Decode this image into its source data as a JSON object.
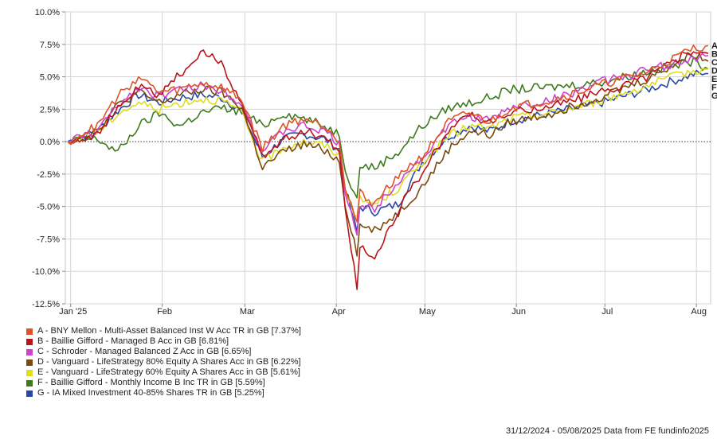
{
  "chart_data": {
    "type": "line",
    "ylim": [
      -12.5,
      10
    ],
    "y_ticks": [
      "10.0%",
      "7.5%",
      "5.0%",
      "2.5%",
      "0.0%",
      "-2.5%",
      "-5.0%",
      "-7.5%",
      "-10.0%",
      "-12.5%"
    ],
    "y_tick_values": [
      10,
      7.5,
      5,
      2.5,
      0,
      -2.5,
      -5,
      -7.5,
      -10,
      -12.5
    ],
    "x_ticks": [
      "Jan '25",
      "Feb",
      "Mar",
      "Apr",
      "May",
      "Jun",
      "Jul",
      "Aug"
    ],
    "x_tick_values": [
      "2025-01-01",
      "2025-02-01",
      "2025-03-01",
      "2025-04-01",
      "2025-05-01",
      "2025-06-01",
      "2025-07-01",
      "2025-08-01"
    ],
    "x_range": [
      "2024-12-31",
      "2025-08-05"
    ],
    "grid": true,
    "zero_line": "dotted",
    "series": [
      {
        "letter": "A",
        "name": "A - BNY Mellon - Multi-Asset Balanced Inst W Acc TR in GB [7.37%]",
        "color": "#e0522a",
        "x": [
          "2024-12-31",
          "2025-01-10",
          "2025-01-17",
          "2025-01-24",
          "2025-01-31",
          "2025-02-07",
          "2025-02-14",
          "2025-02-21",
          "2025-02-28",
          "2025-03-07",
          "2025-03-14",
          "2025-03-21",
          "2025-03-28",
          "2025-04-02",
          "2025-04-04",
          "2025-04-08",
          "2025-04-09",
          "2025-04-14",
          "2025-04-22",
          "2025-04-30",
          "2025-05-09",
          "2025-05-16",
          "2025-05-23",
          "2025-05-30",
          "2025-06-13",
          "2025-06-30",
          "2025-07-15",
          "2025-07-31",
          "2025-08-05"
        ],
        "y": [
          0,
          1.2,
          3.5,
          5,
          3.8,
          4,
          4.5,
          4.2,
          3.2,
          -0.5,
          1.2,
          1.8,
          1.2,
          0.2,
          -3.5,
          -6.2,
          -4,
          -4.8,
          -2.5,
          -1.2,
          1.5,
          2.2,
          1.5,
          2.6,
          3.2,
          4.4,
          5.3,
          7.2,
          7.4
        ]
      },
      {
        "letter": "B",
        "name": "B - Baillie Gifford - Managed B Acc in GB [6.81%]",
        "color": "#b8151c",
        "x": [
          "2024-12-31",
          "2025-01-10",
          "2025-01-17",
          "2025-01-24",
          "2025-01-31",
          "2025-02-07",
          "2025-02-14",
          "2025-02-21",
          "2025-02-28",
          "2025-03-07",
          "2025-03-14",
          "2025-03-21",
          "2025-03-28",
          "2025-04-02",
          "2025-04-04",
          "2025-04-08",
          "2025-04-09",
          "2025-04-14",
          "2025-04-22",
          "2025-04-30",
          "2025-05-09",
          "2025-05-16",
          "2025-05-23",
          "2025-05-30",
          "2025-06-13",
          "2025-06-30",
          "2025-07-15",
          "2025-07-31",
          "2025-08-05"
        ],
        "y": [
          0,
          0.6,
          2.5,
          4.2,
          3.6,
          5.2,
          6.8,
          6.2,
          2.8,
          -1.2,
          0.2,
          0.8,
          0.4,
          -0.8,
          -5,
          -11.3,
          -8,
          -9,
          -5.2,
          -2.4,
          0.8,
          2.2,
          1.4,
          2.2,
          2.8,
          3.8,
          5,
          7.1,
          6.8
        ]
      },
      {
        "letter": "C",
        "name": "C - Schroder - Managed Balanced Z Acc in GB [6.65%]",
        "color": "#cc44cc",
        "x": [
          "2024-12-31",
          "2025-01-10",
          "2025-01-17",
          "2025-01-24",
          "2025-01-31",
          "2025-02-07",
          "2025-02-14",
          "2025-02-21",
          "2025-02-28",
          "2025-03-07",
          "2025-03-14",
          "2025-03-21",
          "2025-03-28",
          "2025-04-02",
          "2025-04-04",
          "2025-04-08",
          "2025-04-09",
          "2025-04-14",
          "2025-04-22",
          "2025-04-30",
          "2025-05-09",
          "2025-05-16",
          "2025-05-23",
          "2025-05-30",
          "2025-06-13",
          "2025-06-30",
          "2025-07-15",
          "2025-07-31",
          "2025-08-05"
        ],
        "y": [
          0,
          0.8,
          2.8,
          4.2,
          3.5,
          4,
          4.3,
          4,
          3,
          -0.8,
          0.8,
          1.2,
          0.8,
          -0.2,
          -3.8,
          -7,
          -5,
          -5.2,
          -3,
          -1.3,
          1.2,
          2,
          1.6,
          2.6,
          3.2,
          4.6,
          5.5,
          6.4,
          6.65
        ]
      },
      {
        "letter": "D",
        "name": "D - Vanguard - LifeStrategy 80% Equity A Shares Acc in GB [6.22%]",
        "color": "#7a4a10",
        "x": [
          "2024-12-31",
          "2025-01-10",
          "2025-01-17",
          "2025-01-24",
          "2025-01-31",
          "2025-02-07",
          "2025-02-14",
          "2025-02-21",
          "2025-02-28",
          "2025-03-07",
          "2025-03-14",
          "2025-03-21",
          "2025-03-28",
          "2025-04-02",
          "2025-04-04",
          "2025-04-08",
          "2025-04-09",
          "2025-04-14",
          "2025-04-22",
          "2025-04-30",
          "2025-05-09",
          "2025-05-16",
          "2025-05-23",
          "2025-05-30",
          "2025-06-13",
          "2025-06-30",
          "2025-07-15",
          "2025-07-31",
          "2025-08-05"
        ],
        "y": [
          0,
          0.9,
          2.8,
          3.8,
          3,
          3.6,
          4,
          3.8,
          2.6,
          -2,
          -0.8,
          -0.2,
          -0.6,
          -1.5,
          -4.8,
          -8.5,
          -6.5,
          -6.8,
          -5.5,
          -3.5,
          -0.6,
          0.8,
          0.5,
          1.5,
          2.2,
          3.5,
          4.8,
          6.8,
          6.2
        ]
      },
      {
        "letter": "E",
        "name": "E - Vanguard - LifeStrategy 60% Equity A Shares Acc in GB [5.61%]",
        "color": "#dddd22",
        "x": [
          "2024-12-31",
          "2025-01-10",
          "2025-01-17",
          "2025-01-24",
          "2025-01-31",
          "2025-02-07",
          "2025-02-14",
          "2025-02-21",
          "2025-02-28",
          "2025-03-07",
          "2025-03-14",
          "2025-03-21",
          "2025-03-28",
          "2025-04-02",
          "2025-04-04",
          "2025-04-08",
          "2025-04-09",
          "2025-04-14",
          "2025-04-22",
          "2025-04-30",
          "2025-05-09",
          "2025-05-16",
          "2025-05-23",
          "2025-05-30",
          "2025-06-13",
          "2025-06-30",
          "2025-07-15",
          "2025-07-31",
          "2025-08-05"
        ],
        "y": [
          0,
          0.7,
          2.2,
          3,
          2.5,
          3,
          3.3,
          3.2,
          2.2,
          -1.6,
          -0.4,
          0,
          -0.3,
          -1,
          -3.6,
          -6,
          -4.5,
          -4.8,
          -3.6,
          -1.6,
          0.4,
          1.2,
          1,
          1.8,
          2.2,
          3.2,
          4.3,
          5.5,
          5.6
        ]
      },
      {
        "letter": "F",
        "name": "F - Baillie Gifford - Monthly Income B Inc TR in GB [5.59%]",
        "color": "#3d7a1c",
        "x": [
          "2024-12-31",
          "2025-01-10",
          "2025-01-17",
          "2025-01-24",
          "2025-01-31",
          "2025-02-07",
          "2025-02-14",
          "2025-02-21",
          "2025-02-28",
          "2025-03-07",
          "2025-03-14",
          "2025-03-21",
          "2025-03-28",
          "2025-04-02",
          "2025-04-04",
          "2025-04-08",
          "2025-04-09",
          "2025-04-14",
          "2025-04-22",
          "2025-04-30",
          "2025-05-09",
          "2025-05-16",
          "2025-05-23",
          "2025-05-30",
          "2025-06-13",
          "2025-06-30",
          "2025-07-15",
          "2025-07-31",
          "2025-08-05"
        ],
        "y": [
          0,
          0.2,
          -0.8,
          1.2,
          2.2,
          1.2,
          2.2,
          2.6,
          2.3,
          1.2,
          2.2,
          1.8,
          1.2,
          0.6,
          -2,
          -4.5,
          -1.8,
          -2,
          -0.8,
          1.2,
          2.6,
          3,
          3.4,
          4,
          4.2,
          4.6,
          5.4,
          6.2,
          5.6
        ]
      },
      {
        "letter": "G",
        "name": "G - IA Mixed Investment 40-85% Shares TR in GB [5.25%]",
        "color": "#2848a8",
        "x": [
          "2024-12-31",
          "2025-01-10",
          "2025-01-17",
          "2025-01-24",
          "2025-01-31",
          "2025-02-07",
          "2025-02-14",
          "2025-02-21",
          "2025-02-28",
          "2025-03-07",
          "2025-03-14",
          "2025-03-21",
          "2025-03-28",
          "2025-04-02",
          "2025-04-04",
          "2025-04-08",
          "2025-04-09",
          "2025-04-14",
          "2025-04-22",
          "2025-04-30",
          "2025-05-09",
          "2025-05-16",
          "2025-05-23",
          "2025-05-30",
          "2025-06-13",
          "2025-06-30",
          "2025-07-15",
          "2025-07-31",
          "2025-08-05"
        ],
        "y": [
          0,
          0.8,
          2.4,
          3.6,
          3,
          3.4,
          3.6,
          3.4,
          2.4,
          -1.2,
          0.2,
          0.6,
          0.2,
          -0.6,
          -3.6,
          -7,
          -5,
          -5.4,
          -4.8,
          -1.6,
          0.4,
          1.2,
          0.8,
          1.6,
          2.2,
          3,
          4,
          5.2,
          5.25
        ]
      }
    ]
  },
  "footer": {
    "text": "31/12/2024 - 05/08/2025 Data from FE fundinfo2025"
  }
}
